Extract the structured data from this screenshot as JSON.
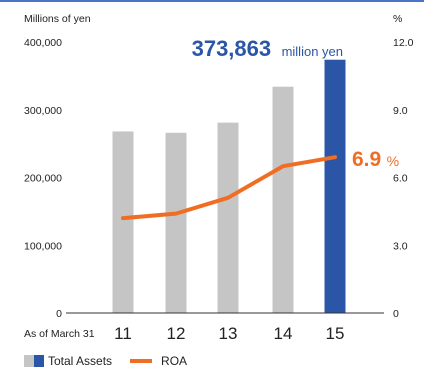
{
  "chart_data": {
    "type": "bar",
    "categories": [
      "11",
      "12",
      "13",
      "14",
      "15"
    ],
    "x_prefix": "As of March 31",
    "left_axis_unit": "Millions of yen",
    "right_axis_unit": "%",
    "left_ticks": [
      "400,000",
      "300,000",
      "200,000",
      "100,000",
      "0"
    ],
    "right_ticks": [
      "12.0",
      "9.0",
      "6.0",
      "3.0",
      "0"
    ],
    "ylim_left": [
      0,
      400000
    ],
    "ylim_right": [
      0,
      12
    ],
    "grid": false,
    "legend_position": "bottom-left",
    "series": [
      {
        "name": "Total Assets",
        "type": "bar",
        "axis": "left",
        "values": [
          268000,
          266000,
          281000,
          334000,
          373863
        ],
        "colors": [
          "#c5c5c5",
          "#c5c5c5",
          "#c5c5c5",
          "#c5c5c5",
          "#2b56a8"
        ]
      },
      {
        "name": "ROA",
        "type": "line",
        "axis": "right",
        "values": [
          4.2,
          4.4,
          5.1,
          6.5,
          6.9
        ],
        "color": "#f06e23"
      }
    ],
    "annotations": {
      "assets_value": "373,863",
      "assets_unit": "million yen",
      "roa_value": "6.9",
      "roa_unit": "%"
    }
  },
  "legend": {
    "bar_label": "Total Assets",
    "bar_colors": [
      "#c5c5c5",
      "#2b56a8"
    ],
    "line_label": "ROA",
    "line_color": "#f06e23"
  },
  "colors": {
    "axis": "#333333",
    "top_rule": "#4a73c9",
    "accent_blue": "#2b56a8",
    "accent_orange": "#f06e23"
  }
}
